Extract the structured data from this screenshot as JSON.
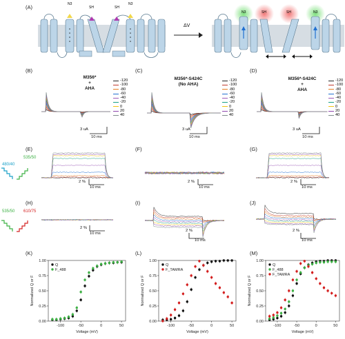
{
  "panels": {
    "A": "(A)",
    "B": "(B)",
    "C": "(C)",
    "D": "(D)",
    "E": "(E)",
    "F": "(F)",
    "G": "(G)",
    "H": "(H)",
    "I": "(I)",
    "J": "(J)",
    "K": "(K)",
    "L": "(L)",
    "M": "(M)"
  },
  "schematic": {
    "label_n3": "N3",
    "label_sh1": "SH",
    "label_sh2": "SH",
    "label_n3b": "N3",
    "label_n3_r": "N3",
    "label_sh_r1": "SH",
    "label_sh_r2": "SH",
    "label_n3b_r": "N3",
    "arrow_label": "ΔV",
    "colors": {
      "membrane": "#d6dde3",
      "helix": "#bcd5e8",
      "green_glow": "#7ee07e",
      "red_glow": "#f27a7a",
      "yellow_n3": "#f2d84a",
      "magenta_sh": "#b03ab0"
    }
  },
  "titles": {
    "B": [
      "M356*",
      "+",
      "AHA"
    ],
    "C": [
      "M356*-S424C",
      "(No AHA)"
    ],
    "D": [
      "M356*-S424C",
      "+",
      "AHA"
    ]
  },
  "voltage_legend": [
    "-120",
    "-100",
    "-80",
    "-60",
    "-40",
    "-20",
    "0",
    "20",
    "40"
  ],
  "legend_colors": [
    "#222222",
    "#c0392b",
    "#e67e22",
    "#1f6fd1",
    "#9b59b6",
    "#16a085",
    "#f1c40f",
    "#8e44ad",
    "#7f8c8d"
  ],
  "scale_bars": {
    "current": "3 uA",
    "time": "10 ms",
    "fluor": "2 %"
  },
  "filters": {
    "E_ex": "480/40",
    "E_em": "535/50",
    "H_ex": "535/50",
    "H_em": "610/75"
  },
  "plots": {
    "K": {
      "xlabel": "Voltage (mV)",
      "ylabel": "Normalized Q or F",
      "legend": [
        "Q",
        "F_488"
      ]
    },
    "L": {
      "xlabel": "Voltage (mV)",
      "ylabel": "Normalized Q or F",
      "legend": [
        "Q",
        "F_TAMRA"
      ]
    },
    "M": {
      "xlabel": "Voltage (mV)",
      "ylabel": "Normalized Q or F",
      "legend": [
        "Q",
        "F_488",
        "F_TAMRA"
      ]
    }
  },
  "chart_data": [
    {
      "type": "scatter",
      "panel": "K",
      "xlabel": "Voltage (mV)",
      "ylabel": "Normalized Q or F",
      "xlim": [
        -130,
        60
      ],
      "ylim": [
        0,
        1
      ],
      "xticks": [
        -100,
        -50,
        0,
        50
      ],
      "yticks": [
        0.0,
        0.25,
        0.5,
        0.75,
        1.0
      ],
      "series": [
        {
          "name": "Q",
          "color": "#111111",
          "x": [
            -120,
            -110,
            -100,
            -90,
            -80,
            -70,
            -60,
            -50,
            -40,
            -30,
            -20,
            -10,
            0,
            10,
            20,
            30,
            40,
            50
          ],
          "y": [
            0.02,
            0.02,
            0.03,
            0.04,
            0.05,
            0.08,
            0.17,
            0.35,
            0.58,
            0.74,
            0.84,
            0.9,
            0.93,
            0.95,
            0.96,
            0.96,
            0.97,
            0.97
          ]
        },
        {
          "name": "F_488",
          "color": "#3cb043",
          "x": [
            -120,
            -110,
            -100,
            -90,
            -80,
            -70,
            -60,
            -50,
            -40,
            -30,
            -20,
            -10,
            0,
            10,
            20,
            30,
            40,
            50
          ],
          "y": [
            0.03,
            0.03,
            0.04,
            0.05,
            0.07,
            0.11,
            0.22,
            0.48,
            0.68,
            0.8,
            0.87,
            0.91,
            0.94,
            0.95,
            0.96,
            0.97,
            0.97,
            0.98
          ]
        }
      ]
    },
    {
      "type": "scatter",
      "panel": "L",
      "xlabel": "Voltage (mV)",
      "ylabel": "Normalized Q or F",
      "xlim": [
        -130,
        60
      ],
      "ylim": [
        0,
        1
      ],
      "xticks": [
        -100,
        -50,
        0,
        50
      ],
      "yticks": [
        0.0,
        0.25,
        0.5,
        0.75,
        1.0
      ],
      "series": [
        {
          "name": "Q",
          "color": "#111111",
          "x": [
            -120,
            -110,
            -100,
            -90,
            -80,
            -70,
            -60,
            -50,
            -40,
            -30,
            -20,
            -10,
            0,
            10,
            20,
            30,
            40,
            50
          ],
          "y": [
            0.02,
            0.02,
            0.03,
            0.05,
            0.09,
            0.17,
            0.32,
            0.52,
            0.72,
            0.85,
            0.92,
            0.96,
            0.98,
            0.99,
            0.99,
            1.0,
            1.0,
            1.0
          ]
        },
        {
          "name": "F_TAMRA",
          "color": "#d42020",
          "x": [
            -120,
            -110,
            -100,
            -90,
            -80,
            -70,
            -60,
            -50,
            -40,
            -30,
            -20,
            -10,
            0,
            10,
            20,
            30,
            40,
            50
          ],
          "y": [
            0.0,
            0.04,
            0.1,
            0.19,
            0.3,
            0.45,
            0.6,
            0.75,
            0.9,
            0.99,
            0.92,
            0.82,
            0.72,
            0.62,
            0.55,
            0.47,
            0.4,
            0.3
          ]
        }
      ]
    },
    {
      "type": "scatter",
      "panel": "M",
      "xlabel": "Voltage (mV)",
      "ylabel": "Normalized Q or F",
      "xlim": [
        -130,
        60
      ],
      "ylim": [
        0,
        1
      ],
      "xticks": [
        -100,
        -50,
        0,
        50
      ],
      "yticks": [
        0.0,
        0.25,
        0.5,
        0.75,
        1.0
      ],
      "series": [
        {
          "name": "Q",
          "color": "#111111",
          "x": [
            -120,
            -110,
            -100,
            -90,
            -80,
            -70,
            -60,
            -50,
            -40,
            -30,
            -20,
            -10,
            0,
            10,
            20,
            30,
            40,
            50
          ],
          "y": [
            0.02,
            0.03,
            0.05,
            0.08,
            0.14,
            0.25,
            0.42,
            0.62,
            0.78,
            0.88,
            0.93,
            0.96,
            0.98,
            0.99,
            0.99,
            1.0,
            1.0,
            1.0
          ]
        },
        {
          "name": "F_488",
          "color": "#3cb043",
          "x": [
            -120,
            -110,
            -100,
            -90,
            -80,
            -70,
            -60,
            -50,
            -40,
            -30,
            -20,
            -10,
            0,
            10,
            20,
            30,
            40,
            50
          ],
          "y": [
            0.04,
            0.06,
            0.09,
            0.13,
            0.2,
            0.32,
            0.5,
            0.68,
            0.8,
            0.88,
            0.92,
            0.94,
            0.96,
            0.97,
            0.97,
            0.98,
            0.98,
            0.98
          ]
        },
        {
          "name": "F_TAMRA",
          "color": "#d42020",
          "x": [
            -120,
            -110,
            -100,
            -90,
            -80,
            -70,
            -60,
            -50,
            -40,
            -30,
            -20,
            -10,
            0,
            10,
            20,
            30,
            40,
            50
          ],
          "y": [
            0.08,
            0.1,
            0.14,
            0.22,
            0.35,
            0.5,
            0.68,
            0.82,
            0.95,
            0.99,
            0.9,
            0.8,
            0.7,
            0.62,
            0.55,
            0.5,
            0.46,
            0.42
          ]
        }
      ]
    }
  ]
}
